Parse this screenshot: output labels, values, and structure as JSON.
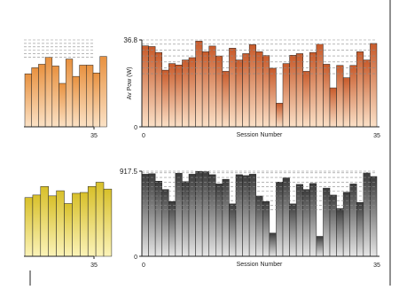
{
  "colors": {
    "frame": "#222222",
    "grid": "#8c8c8c",
    "bar_stroke": "#222222",
    "orange_top": "#c85a2a",
    "orange_bottom": "#fbe1c8",
    "light_orange_top": "#e8913f",
    "light_orange_bottom": "#fbe2c6",
    "yellow_top": "#d8c02a",
    "yellow_bottom": "#fbf3b8",
    "gray_top": "#3a3a3a",
    "gray_bottom": "#e6e6e6"
  },
  "chart_data": [
    {
      "id": "left-top",
      "type": "bar",
      "partial": true,
      "x_tick_label": "35",
      "values": [
        61,
        68,
        72,
        80,
        70,
        50,
        78,
        58,
        71,
        71,
        62,
        81
      ],
      "ylim": [
        0,
        100
      ],
      "grid_lines": [
        80,
        84,
        88,
        92,
        96,
        100
      ]
    },
    {
      "id": "right-top",
      "type": "bar",
      "title": "",
      "xlabel": "Session Number",
      "ylabel": "Av Pow (W)",
      "x_tick_labels": [
        "0",
        "35"
      ],
      "y_max_label": "36.8",
      "y_zero_label": "0",
      "ylim": [
        0,
        36.8
      ],
      "values": [
        34.3,
        34.0,
        31.5,
        24.0,
        26.8,
        26.2,
        28.3,
        29.3,
        36.3,
        31.8,
        34.2,
        30.0,
        23.5,
        33.3,
        28.3,
        31.0,
        34.8,
        31.8,
        30.2,
        24.8,
        10.0,
        26.8,
        30.3,
        31.0,
        23.5,
        31.5,
        35.0,
        26.5,
        16.5,
        26.0,
        20.8,
        26.0,
        31.8,
        28.3,
        35.3
      ],
      "grid_lines": [
        22.5,
        25.0,
        27.5,
        30.0,
        32.5,
        35.0,
        36.8
      ]
    },
    {
      "id": "left-bottom",
      "type": "bar",
      "partial": true,
      "x_tick_label": "35",
      "values": [
        69,
        72,
        82,
        71,
        77,
        62,
        74,
        75,
        82,
        87,
        79
      ],
      "ylim": [
        0,
        100
      ]
    },
    {
      "id": "right-bottom",
      "type": "bar",
      "xlabel": "Session Number",
      "x_tick_labels": [
        "0",
        "35"
      ],
      "y_max_label": "917.5",
      "y_zero_label": "0",
      "ylim": [
        0,
        917.5
      ],
      "values": [
        885,
        890,
        810,
        720,
        590,
        895,
        805,
        885,
        915,
        912,
        880,
        780,
        830,
        565,
        880,
        870,
        885,
        650,
        590,
        250,
        800,
        845,
        565,
        775,
        720,
        785,
        215,
        735,
        660,
        515,
        690,
        780,
        580,
        900,
        860
      ],
      "grid_lines": [
        500,
        550,
        600,
        650,
        700,
        750,
        800,
        850,
        900,
        917.5
      ]
    }
  ]
}
